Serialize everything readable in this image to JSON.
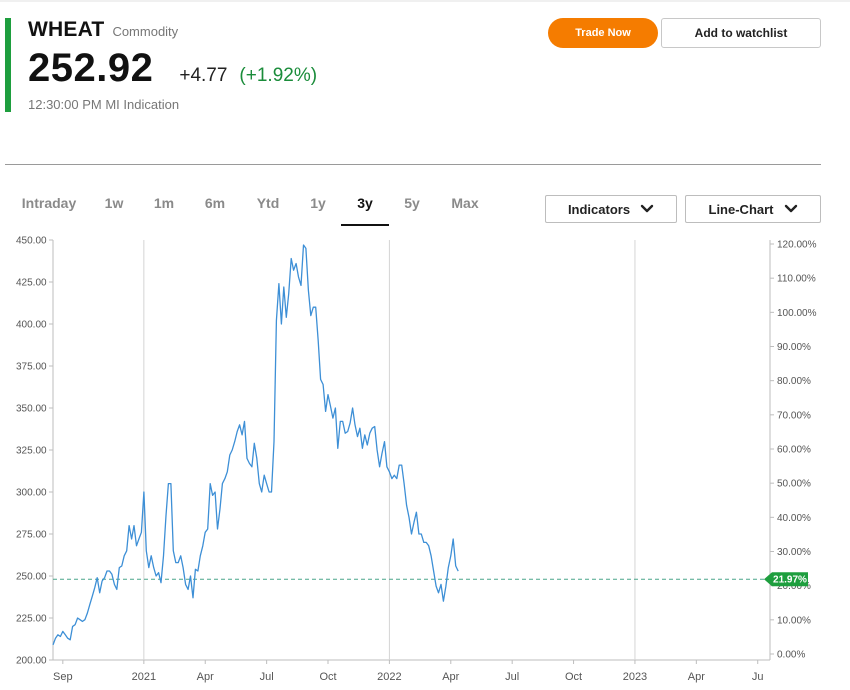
{
  "instrument": {
    "symbol": "WHEAT",
    "asset_type": "Commodity",
    "price": "252.92",
    "change": "+4.77",
    "change_percent": "(+1.92%)",
    "time": "12:30:00 PM",
    "indication": "MI Indication"
  },
  "actions": {
    "trade_label": "Trade Now",
    "watchlist_label": "Add to watchlist"
  },
  "range_tabs": [
    "Intraday",
    "1w",
    "1m",
    "6m",
    "Ytd",
    "1y",
    "3y",
    "5y",
    "Max"
  ],
  "active_tab": "3y",
  "controls": {
    "indicators_label": "Indicators",
    "chart_type_label": "Line-Chart"
  },
  "colors": {
    "accent_bar": "#1e9e3e",
    "positive": "#1a8c3a",
    "trade_button": "#f57c00",
    "line": "#3d8fd6",
    "reference_line": "#4aa58a",
    "marker": "#1e9e3e"
  },
  "icons": {
    "dropdown": "chevron-down-icon",
    "marker": "arrow-left-tag-icon"
  },
  "chart_data": {
    "type": "line",
    "title": "",
    "xlabel": "",
    "ylabel": "",
    "ylim": [
      200,
      450
    ],
    "y_ticks": [
      "450.00",
      "425.00",
      "400.00",
      "375.00",
      "350.00",
      "325.00",
      "300.00",
      "275.00",
      "250.00",
      "225.00",
      "200.00"
    ],
    "y2_ticks": [
      "120.00%",
      "110.00%",
      "100.00%",
      "90.00%",
      "80.00%",
      "70.00%",
      "60.00%",
      "50.00%",
      "40.00%",
      "30.00%",
      "20.00%",
      "10.00%",
      "0.00%"
    ],
    "y2lim": [
      0,
      120
    ],
    "x_range": [
      2020.63,
      2023.55
    ],
    "x_ticks": [
      {
        "label": "Sep",
        "x": 2020.67
      },
      {
        "label": "2021",
        "x": 2021.0
      },
      {
        "label": "Apr",
        "x": 2021.25
      },
      {
        "label": "Jul",
        "x": 2021.5
      },
      {
        "label": "Oct",
        "x": 2021.75
      },
      {
        "label": "2022",
        "x": 2022.0
      },
      {
        "label": "Apr",
        "x": 2022.25
      },
      {
        "label": "Jul",
        "x": 2022.5
      },
      {
        "label": "Oct",
        "x": 2022.75
      },
      {
        "label": "2023",
        "x": 2023.0
      },
      {
        "label": "Apr",
        "x": 2023.25
      },
      {
        "label": "Ju",
        "x": 2023.5
      }
    ],
    "vertical_gridlines_at": [
      2021.0,
      2022.0,
      2023.0
    ],
    "reference": {
      "value": 248.1,
      "label": "21.97%"
    },
    "series": [
      {
        "values": [
          [
            2020.63,
            209
          ],
          [
            2020.64,
            213
          ],
          [
            2020.65,
            215
          ],
          [
            2020.66,
            214
          ],
          [
            2020.67,
            217
          ],
          [
            2020.68,
            215
          ],
          [
            2020.69,
            213
          ],
          [
            2020.7,
            212
          ],
          [
            2020.71,
            220
          ],
          [
            2020.72,
            221
          ],
          [
            2020.73,
            225
          ],
          [
            2020.74,
            224
          ],
          [
            2020.75,
            223
          ],
          [
            2020.76,
            224
          ],
          [
            2020.77,
            228
          ],
          [
            2020.78,
            233
          ],
          [
            2020.79,
            238
          ],
          [
            2020.8,
            243
          ],
          [
            2020.81,
            249
          ],
          [
            2020.82,
            240
          ],
          [
            2020.83,
            247
          ],
          [
            2020.84,
            249
          ],
          [
            2020.85,
            253
          ],
          [
            2020.86,
            253
          ],
          [
            2020.87,
            251
          ],
          [
            2020.88,
            245
          ],
          [
            2020.89,
            242
          ],
          [
            2020.9,
            255
          ],
          [
            2020.91,
            256
          ],
          [
            2020.92,
            262
          ],
          [
            2020.93,
            265
          ],
          [
            2020.94,
            280
          ],
          [
            2020.95,
            272
          ],
          [
            2020.96,
            280
          ],
          [
            2020.97,
            268
          ],
          [
            2020.98,
            272
          ],
          [
            2020.99,
            276
          ],
          [
            2021.0,
            300
          ],
          [
            2021.01,
            265
          ],
          [
            2021.02,
            255
          ],
          [
            2021.03,
            262
          ],
          [
            2021.04,
            255
          ],
          [
            2021.05,
            250
          ],
          [
            2021.06,
            252
          ],
          [
            2021.07,
            246
          ],
          [
            2021.08,
            262
          ],
          [
            2021.09,
            286
          ],
          [
            2021.1,
            305
          ],
          [
            2021.11,
            305
          ],
          [
            2021.12,
            265
          ],
          [
            2021.13,
            258
          ],
          [
            2021.14,
            258
          ],
          [
            2021.15,
            262
          ],
          [
            2021.16,
            255
          ],
          [
            2021.17,
            245
          ],
          [
            2021.18,
            242
          ],
          [
            2021.19,
            250
          ],
          [
            2021.2,
            237
          ],
          [
            2021.21,
            254
          ],
          [
            2021.22,
            253
          ],
          [
            2021.23,
            262
          ],
          [
            2021.24,
            268
          ],
          [
            2021.25,
            276
          ],
          [
            2021.26,
            278
          ],
          [
            2021.27,
            305
          ],
          [
            2021.28,
            298
          ],
          [
            2021.29,
            300
          ],
          [
            2021.3,
            278
          ],
          [
            2021.31,
            290
          ],
          [
            2021.32,
            305
          ],
          [
            2021.33,
            308
          ],
          [
            2021.34,
            312
          ],
          [
            2021.35,
            322
          ],
          [
            2021.36,
            325
          ],
          [
            2021.37,
            330
          ],
          [
            2021.38,
            336
          ],
          [
            2021.39,
            340
          ],
          [
            2021.4,
            334
          ],
          [
            2021.41,
            342
          ],
          [
            2021.42,
            320
          ],
          [
            2021.43,
            317
          ],
          [
            2021.44,
            315
          ],
          [
            2021.45,
            329
          ],
          [
            2021.46,
            320
          ],
          [
            2021.47,
            305
          ],
          [
            2021.48,
            300
          ],
          [
            2021.49,
            310
          ],
          [
            2021.5,
            305
          ],
          [
            2021.51,
            300
          ],
          [
            2021.52,
            300
          ],
          [
            2021.53,
            330
          ],
          [
            2021.54,
            402
          ],
          [
            2021.55,
            424
          ],
          [
            2021.56,
            400
          ],
          [
            2021.57,
            422
          ],
          [
            2021.58,
            404
          ],
          [
            2021.59,
            418
          ],
          [
            2021.6,
            439
          ],
          [
            2021.61,
            432
          ],
          [
            2021.62,
            436
          ],
          [
            2021.63,
            428
          ],
          [
            2021.64,
            423
          ],
          [
            2021.65,
            447
          ],
          [
            2021.66,
            445
          ],
          [
            2021.67,
            420
          ],
          [
            2021.68,
            405
          ],
          [
            2021.69,
            410
          ],
          [
            2021.7,
            410
          ],
          [
            2021.71,
            390
          ],
          [
            2021.72,
            367
          ],
          [
            2021.73,
            364
          ],
          [
            2021.74,
            348
          ],
          [
            2021.75,
            358
          ],
          [
            2021.76,
            351
          ],
          [
            2021.77,
            344
          ],
          [
            2021.78,
            350
          ],
          [
            2021.79,
            326
          ],
          [
            2021.8,
            342
          ],
          [
            2021.81,
            342
          ],
          [
            2021.82,
            335
          ],
          [
            2021.83,
            336
          ],
          [
            2021.84,
            341
          ],
          [
            2021.85,
            350
          ],
          [
            2021.86,
            340
          ],
          [
            2021.87,
            333
          ],
          [
            2021.88,
            338
          ],
          [
            2021.89,
            326
          ],
          [
            2021.9,
            334
          ],
          [
            2021.91,
            328
          ],
          [
            2021.92,
            335
          ],
          [
            2021.93,
            338
          ],
          [
            2021.94,
            339
          ],
          [
            2021.95,
            325
          ],
          [
            2021.96,
            315
          ],
          [
            2021.97,
            323
          ],
          [
            2021.98,
            330
          ],
          [
            2021.99,
            315
          ],
          [
            2022.0,
            312
          ],
          [
            2022.01,
            308
          ],
          [
            2022.02,
            310
          ],
          [
            2022.03,
            308
          ],
          [
            2022.04,
            316
          ],
          [
            2022.05,
            316
          ],
          [
            2022.06,
            305
          ],
          [
            2022.07,
            292
          ],
          [
            2022.08,
            285
          ],
          [
            2022.09,
            275
          ],
          [
            2022.1,
            282
          ],
          [
            2022.11,
            288
          ],
          [
            2022.12,
            275
          ],
          [
            2022.13,
            275
          ],
          [
            2022.14,
            270
          ],
          [
            2022.15,
            270
          ],
          [
            2022.16,
            268
          ],
          [
            2022.17,
            262
          ],
          [
            2022.18,
            253
          ],
          [
            2022.19,
            244
          ],
          [
            2022.2,
            240
          ],
          [
            2022.21,
            245
          ],
          [
            2022.22,
            235
          ],
          [
            2022.23,
            244
          ],
          [
            2022.24,
            255
          ],
          [
            2022.25,
            262
          ],
          [
            2022.26,
            272
          ],
          [
            2022.27,
            256
          ],
          [
            2022.28,
            252.92
          ]
        ]
      }
    ]
  }
}
